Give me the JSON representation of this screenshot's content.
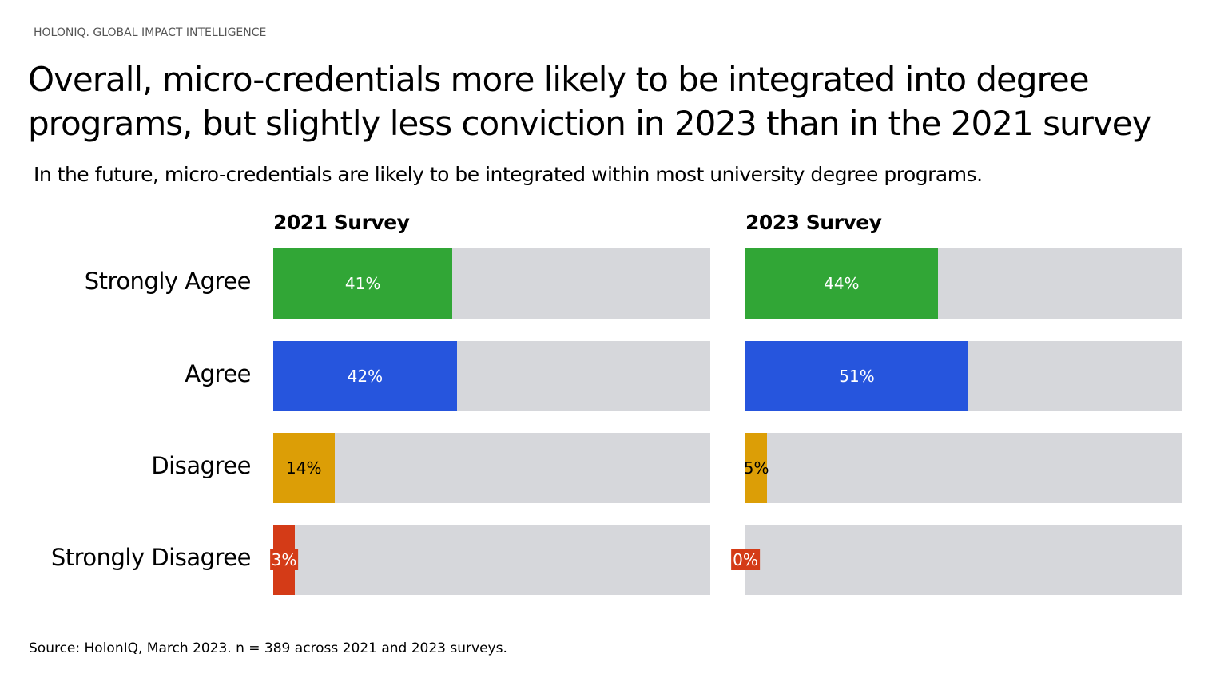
{
  "brand": "HOLONIQ. GLOBAL IMPACT INTELLIGENCE",
  "chart_data": {
    "type": "bar",
    "title": "Overall, micro-credentials more likely to be integrated into degree programs, but slightly less conviction in 2023 than in the 2021 survey",
    "subtitle": "In the future, micro-credentials are likely to be integrated within most university degree programs.",
    "categories": [
      "Strongly Agree",
      "Agree",
      "Disagree",
      "Strongly Disagree"
    ],
    "colors": [
      "#31a636",
      "#2655dd",
      "#dc9e06",
      "#d43b17"
    ],
    "track_color": "#d6d7db",
    "xlim": [
      0,
      100
    ],
    "panels": [
      {
        "title": "2021 Survey",
        "values": [
          41,
          42,
          14,
          3
        ],
        "labels": [
          "41%",
          "42%",
          "14%",
          "3%"
        ]
      },
      {
        "title": "2023 Survey",
        "values": [
          44,
          51,
          5,
          0
        ],
        "labels": [
          "44%",
          "51%",
          "5%",
          "0%"
        ]
      }
    ],
    "source": "Source: HolonIQ, March 2023. n = 389 across 2021 and 2023 surveys."
  }
}
